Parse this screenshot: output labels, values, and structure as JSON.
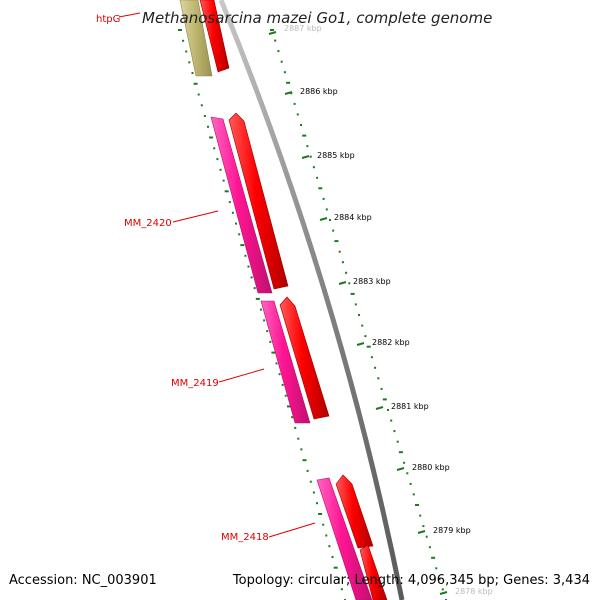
{
  "title": "Methanosarcina mazei Go1, complete genome",
  "footer": {
    "accession": "Accession: NC_003901",
    "summary": "Topology: circular; Length: 4,096,345 bp; Genes: 3,434"
  },
  "colors": {
    "forward_cds": "#ff0000",
    "reverse_cds": "#ff1493",
    "olive_feature": "#c0b873",
    "backbone": "#888888",
    "gc_skew_dots": "#1f7a1f",
    "label": "#e00000",
    "tick_label": "#000000"
  },
  "genes": [
    {
      "name": "htpG"
    },
    {
      "name": "MM_2420"
    },
    {
      "name": "MM_2419"
    },
    {
      "name": "MM_2418"
    }
  ],
  "scale_ticks": [
    "2887 kbp",
    "2886 kbp",
    "2885 kbp",
    "2884 kbp",
    "2883 kbp",
    "2882 kbp",
    "2881 kbp",
    "2880 kbp",
    "2879 kbp",
    "2878 kbp"
  ]
}
